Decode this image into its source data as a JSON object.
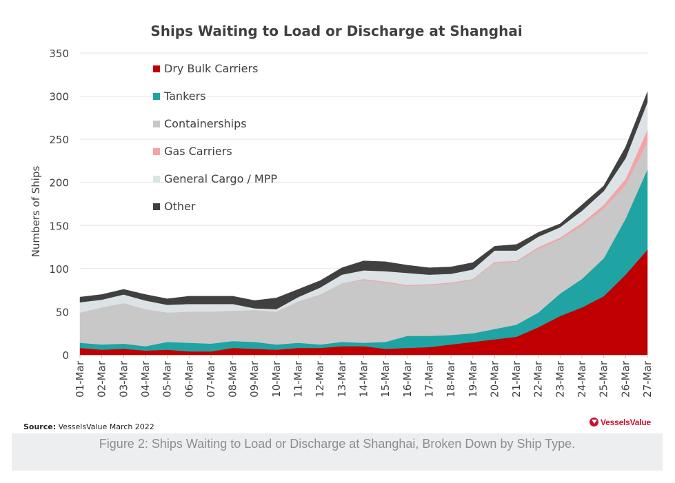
{
  "caption": "Figure 2: Ships Waiting to Load or Discharge at Shanghai, Broken Down by Ship Type.",
  "source": {
    "label": "Source:",
    "text": "VesselsValue March 2022"
  },
  "brand": "VesselsValue",
  "chart_data": {
    "type": "area",
    "stacked": true,
    "title": "Ships Waiting to Load or Discharge at Shanghai",
    "xlabel": "",
    "ylabel": "Numbers of Ships",
    "ylim": [
      0,
      350
    ],
    "yticks": [
      0,
      50,
      100,
      150,
      200,
      250,
      300,
      350
    ],
    "grid": true,
    "legend_position": "top-left",
    "x": [
      "01-Mar",
      "02-Mar",
      "03-Mar",
      "04-Mar",
      "05-Mar",
      "06-Mar",
      "07-Mar",
      "08-Mar",
      "09-Mar",
      "10-Mar",
      "11-Mar",
      "12-Mar",
      "13-Mar",
      "14-Mar",
      "15-Mar",
      "16-Mar",
      "17-Mar",
      "18-Mar",
      "19-Mar",
      "20-Mar",
      "21-Mar",
      "22-Mar",
      "23-Mar",
      "24-Mar",
      "25-Mar",
      "26-Mar",
      "27-Mar"
    ],
    "series": [
      {
        "name": "Dry Bulk Carriers",
        "color": "#c00000",
        "values": [
          8,
          6,
          7,
          5,
          6,
          4,
          4,
          8,
          7,
          6,
          8,
          8,
          10,
          10,
          7,
          8,
          9,
          12,
          15,
          18,
          21,
          32,
          45,
          55,
          68,
          93,
          122
        ]
      },
      {
        "name": "Tankers",
        "color": "#1fa3a3",
        "values": [
          6,
          6,
          6,
          5,
          9,
          10,
          9,
          8,
          8,
          6,
          6,
          4,
          5,
          4,
          8,
          14,
          13,
          11,
          10,
          12,
          14,
          17,
          26,
          33,
          44,
          65,
          93
        ]
      },
      {
        "name": "Containerships",
        "color": "#c8c8c8",
        "values": [
          35,
          43,
          47,
          43,
          34,
          36,
          37,
          35,
          37,
          38,
          48,
          58,
          68,
          73,
          69,
          58,
          59,
          60,
          62,
          77,
          73,
          74,
          63,
          62,
          58,
          39,
          32
        ]
      },
      {
        "name": "Gas Carriers",
        "color": "#f4a3a6",
        "values": [
          0,
          0,
          0,
          0,
          0,
          0,
          0,
          0,
          0,
          0,
          0,
          0,
          0,
          1,
          1,
          1,
          1,
          1,
          1,
          1,
          1,
          2,
          2,
          3,
          4,
          7,
          14
        ]
      },
      {
        "name": "General Cargo / MPP",
        "color": "#dbe3e6",
        "values": [
          12,
          9,
          10,
          10,
          9,
          9,
          9,
          8,
          2,
          3,
          5,
          8,
          10,
          10,
          12,
          14,
          11,
          10,
          11,
          13,
          12,
          12,
          12,
          14,
          16,
          24,
          32
        ]
      },
      {
        "name": "Other",
        "color": "#404040",
        "values": [
          6,
          6,
          6,
          7,
          7,
          9,
          9,
          9,
          9,
          13,
          9,
          8,
          8,
          11,
          11,
          9,
          8,
          8,
          8,
          5,
          7,
          5,
          4,
          7,
          6,
          13,
          12
        ]
      }
    ]
  }
}
